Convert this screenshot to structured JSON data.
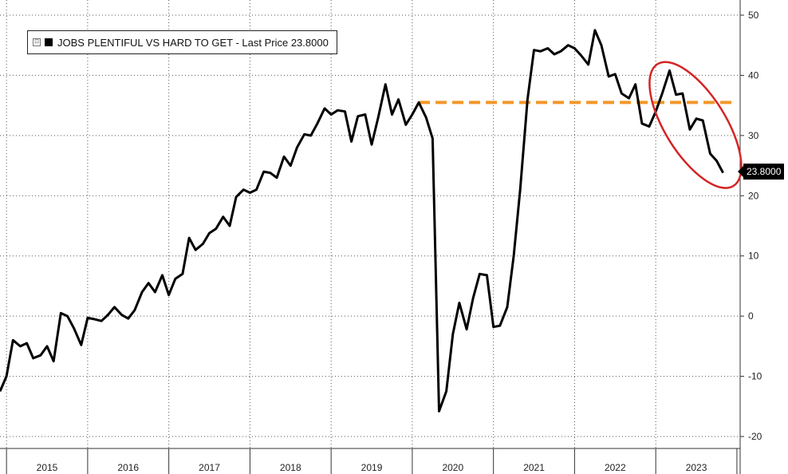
{
  "legend": {
    "toggle_symbol": "⊡",
    "label": "JOBS PLENTIFUL VS HARD TO GET - Last Price 23.8000"
  },
  "last_value_label": "23.8000",
  "chart_data": {
    "type": "line",
    "title": "",
    "xlabel": "",
    "ylabel": "",
    "y_axis_side": "right",
    "ylim": [
      -21,
      52
    ],
    "yticks": [
      50,
      40,
      30,
      20,
      10,
      0,
      -10,
      -20
    ],
    "year_ticks": [
      2015,
      2016,
      2017,
      2018,
      2019,
      2020,
      2021,
      2022,
      2023
    ],
    "grid": true,
    "legend_position": "top-left",
    "series": [
      {
        "name": "JOBS PLENTIFUL VS HARD TO GET",
        "color": "#000000",
        "points": [
          [
            2014.92,
            -12.5
          ],
          [
            2015.0,
            -10
          ],
          [
            2015.08,
            -4
          ],
          [
            2015.17,
            -5
          ],
          [
            2015.25,
            -4.5
          ],
          [
            2015.33,
            -7
          ],
          [
            2015.42,
            -6.5
          ],
          [
            2015.5,
            -5
          ],
          [
            2015.58,
            -7.5
          ],
          [
            2015.67,
            0.5
          ],
          [
            2015.75,
            0
          ],
          [
            2015.83,
            -2
          ],
          [
            2015.92,
            -4.8
          ],
          [
            2016.0,
            -0.3
          ],
          [
            2016.08,
            -0.5
          ],
          [
            2016.17,
            -0.8
          ],
          [
            2016.25,
            0.2
          ],
          [
            2016.33,
            1.5
          ],
          [
            2016.42,
            0.2
          ],
          [
            2016.5,
            -0.4
          ],
          [
            2016.58,
            1
          ],
          [
            2016.67,
            4
          ],
          [
            2016.75,
            5.5
          ],
          [
            2016.83,
            4
          ],
          [
            2016.92,
            6.8
          ],
          [
            2017.0,
            3.5
          ],
          [
            2017.08,
            6.2
          ],
          [
            2017.17,
            7
          ],
          [
            2017.25,
            13
          ],
          [
            2017.33,
            11
          ],
          [
            2017.42,
            12
          ],
          [
            2017.5,
            13.8
          ],
          [
            2017.58,
            14.5
          ],
          [
            2017.67,
            16.5
          ],
          [
            2017.75,
            15
          ],
          [
            2017.83,
            19.8
          ],
          [
            2017.92,
            21
          ],
          [
            2018.0,
            20.5
          ],
          [
            2018.08,
            21
          ],
          [
            2018.17,
            24
          ],
          [
            2018.25,
            23.8
          ],
          [
            2018.33,
            23
          ],
          [
            2018.42,
            26.5
          ],
          [
            2018.5,
            25
          ],
          [
            2018.58,
            28
          ],
          [
            2018.67,
            30.2
          ],
          [
            2018.75,
            30
          ],
          [
            2018.83,
            32
          ],
          [
            2018.92,
            34.5
          ],
          [
            2019.0,
            33.5
          ],
          [
            2019.08,
            34.2
          ],
          [
            2019.17,
            34
          ],
          [
            2019.25,
            29
          ],
          [
            2019.33,
            33.2
          ],
          [
            2019.42,
            33.5
          ],
          [
            2019.5,
            28.5
          ],
          [
            2019.58,
            33
          ],
          [
            2019.67,
            38.5
          ],
          [
            2019.75,
            33.5
          ],
          [
            2019.83,
            36
          ],
          [
            2019.92,
            31.8
          ],
          [
            2020.0,
            33.5
          ],
          [
            2020.08,
            35.5
          ],
          [
            2020.17,
            33
          ],
          [
            2020.25,
            29.5
          ],
          [
            2020.33,
            -15.8
          ],
          [
            2020.42,
            -12.5
          ],
          [
            2020.5,
            -3
          ],
          [
            2020.58,
            2.2
          ],
          [
            2020.67,
            -2.2
          ],
          [
            2020.75,
            3
          ],
          [
            2020.83,
            7
          ],
          [
            2020.92,
            6.8
          ],
          [
            2021.0,
            -1.8
          ],
          [
            2021.08,
            -1.6
          ],
          [
            2021.17,
            1.5
          ],
          [
            2021.25,
            10
          ],
          [
            2021.33,
            21
          ],
          [
            2021.42,
            36
          ],
          [
            2021.5,
            44.2
          ],
          [
            2021.58,
            44
          ],
          [
            2021.67,
            44.5
          ],
          [
            2021.75,
            43.5
          ],
          [
            2021.83,
            44
          ],
          [
            2021.92,
            45
          ],
          [
            2022.0,
            44.5
          ],
          [
            2022.08,
            43.3
          ],
          [
            2022.17,
            41.8
          ],
          [
            2022.25,
            47.5
          ],
          [
            2022.33,
            45
          ],
          [
            2022.42,
            39.8
          ],
          [
            2022.5,
            40.2
          ],
          [
            2022.58,
            37
          ],
          [
            2022.67,
            36.2
          ],
          [
            2022.75,
            38.5
          ],
          [
            2022.83,
            32
          ],
          [
            2022.92,
            31.5
          ],
          [
            2023.0,
            34
          ],
          [
            2023.08,
            37
          ],
          [
            2023.17,
            40.8
          ],
          [
            2023.25,
            36.8
          ],
          [
            2023.33,
            37
          ],
          [
            2023.42,
            31
          ],
          [
            2023.5,
            32.8
          ],
          [
            2023.58,
            32.5
          ],
          [
            2023.67,
            27
          ],
          [
            2023.75,
            25.8
          ],
          [
            2023.83,
            23.8
          ]
        ]
      }
    ],
    "reference_line": {
      "value": 35.5,
      "x_start": 2020.08,
      "x_end": 2024.5,
      "color": "#f2972b",
      "style": "dashed"
    },
    "highlight_ellipse": {
      "color": "#d42424"
    }
  }
}
